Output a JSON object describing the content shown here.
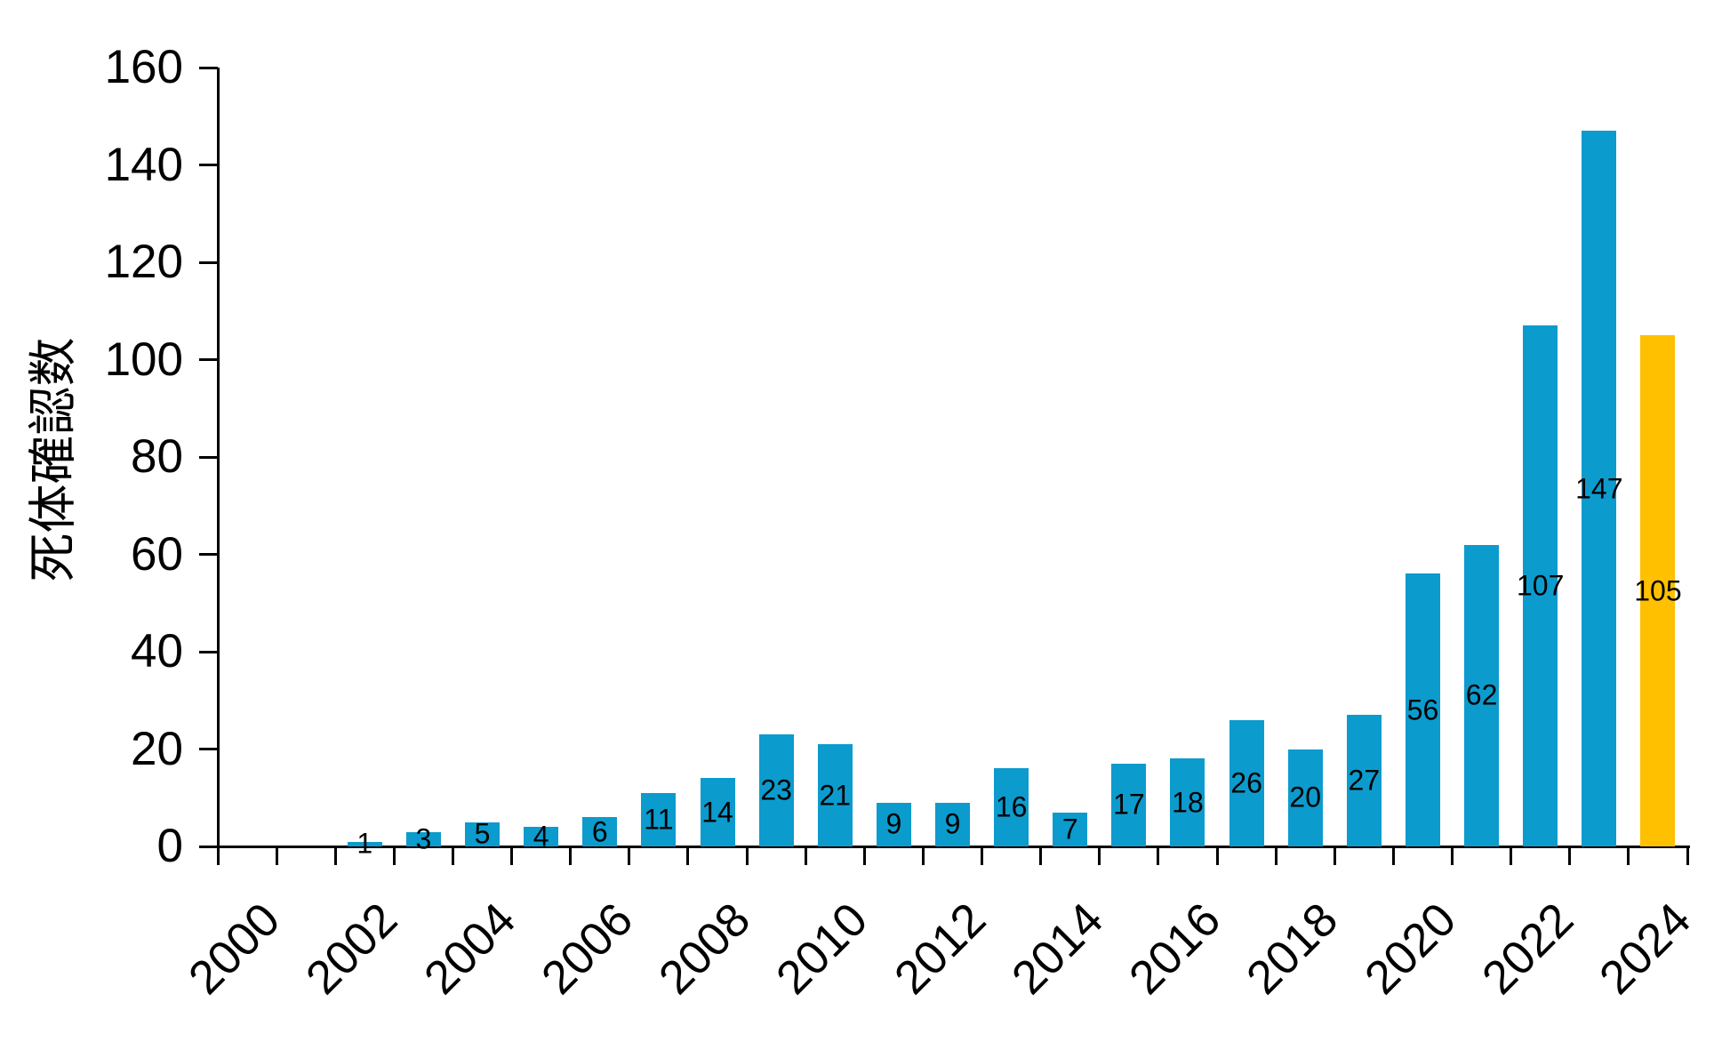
{
  "chart_data": {
    "type": "bar",
    "title": "",
    "ylabel": "死体確認数",
    "xlabel": "",
    "categories": [
      "2000",
      "2001",
      "2002",
      "2003",
      "2004",
      "2005",
      "2006",
      "2007",
      "2008",
      "2009",
      "2010",
      "2011",
      "2012",
      "2013",
      "2014",
      "2015",
      "2016",
      "2017",
      "2018",
      "2019",
      "2020",
      "2021",
      "2022",
      "2023",
      "2024"
    ],
    "values": [
      0,
      0,
      1,
      3,
      5,
      4,
      6,
      11,
      14,
      23,
      21,
      9,
      9,
      16,
      7,
      17,
      18,
      26,
      20,
      27,
      56,
      62,
      107,
      147,
      105
    ],
    "labeled_categories": [
      "2000",
      "2002",
      "2004",
      "2006",
      "2008",
      "2010",
      "2012",
      "2014",
      "2016",
      "2018",
      "2020",
      "2022",
      "2024"
    ],
    "y_ticks": [
      "0",
      "20",
      "40",
      "60",
      "80",
      "100",
      "120",
      "140",
      "160"
    ],
    "ylim": [
      0,
      160
    ],
    "grid": false,
    "legend_position": "none",
    "bar_color": "#0C9BCD",
    "highlight_color": "#FFC000",
    "highlight_category": "2024",
    "axis_color": "#000000",
    "value_label_color": "#000000"
  }
}
